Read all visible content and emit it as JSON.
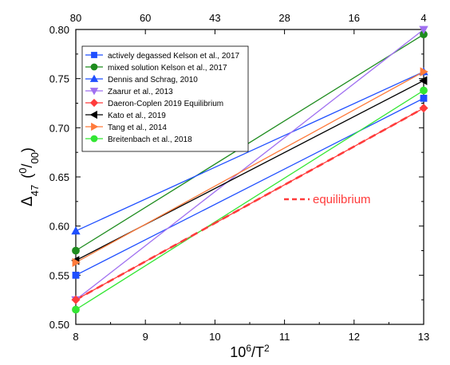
{
  "chart_data": {
    "type": "line",
    "xlabel_main": "10",
    "xlabel_sup": "6",
    "xlabel_rest": "/T",
    "xlabel_sup2": "2",
    "ylabel_delta": "Δ",
    "ylabel_sub": "47",
    "ylabel_unit_sup": "0",
    "ylabel_unit_slash": "/",
    "ylabel_unit_sub": "00",
    "xlim": [
      8,
      13
    ],
    "ylim": [
      0.5,
      0.8
    ],
    "x_ticks": [
      "8",
      "9",
      "10",
      "11",
      "12",
      "13"
    ],
    "x_tick_values": [
      8,
      9,
      10,
      11,
      12,
      13
    ],
    "y_ticks": [
      "0.50",
      "0.55",
      "0.60",
      "0.65",
      "0.70",
      "0.75",
      "0.80"
    ],
    "y_tick_values": [
      0.5,
      0.55,
      0.6,
      0.65,
      0.7,
      0.75,
      0.8
    ],
    "top_ticks": [
      "80",
      "60",
      "43",
      "28",
      "16",
      "4"
    ],
    "top_tick_values": [
      8,
      9,
      10,
      11,
      12,
      13
    ],
    "grid": false,
    "legend_position": "top-left",
    "series": [
      {
        "name": "actively degassed Kelson et al., 2017",
        "x": [
          8,
          13
        ],
        "y": [
          0.55,
          0.73
        ],
        "color": "#1f4fff",
        "marker": "square",
        "dashed": false
      },
      {
        "name": "mixed solution Kelson et al., 2017",
        "x": [
          8,
          13
        ],
        "y": [
          0.575,
          0.795
        ],
        "color": "#1e8c1e",
        "marker": "circle",
        "dashed": false
      },
      {
        "name": "Dennis and Schrag, 2010",
        "x": [
          8,
          13
        ],
        "y": [
          0.595,
          0.757
        ],
        "color": "#1f4fff",
        "marker": "triangle-up",
        "dashed": false
      },
      {
        "name": "Zaarur et al., 2013",
        "x": [
          8,
          13
        ],
        "y": [
          0.525,
          0.8
        ],
        "color": "#a070f0",
        "marker": "triangle-down",
        "dashed": false
      },
      {
        "name": "Daeron-Coplen 2019 Equilibrium",
        "x": [
          8,
          13
        ],
        "y": [
          0.525,
          0.72
        ],
        "color": "#ff3b3b",
        "marker": "diamond",
        "dashed": false
      },
      {
        "name": "Kato et al., 2019",
        "x": [
          8,
          13
        ],
        "y": [
          0.565,
          0.748
        ],
        "color": "#000000",
        "marker": "triangle-left",
        "dashed": false
      },
      {
        "name": "Tang et al., 2014",
        "x": [
          8,
          13
        ],
        "y": [
          0.563,
          0.757
        ],
        "color": "#ff7a3b",
        "marker": "triangle-right",
        "dashed": false
      },
      {
        "name": "Breitenbach et al., 2018",
        "x": [
          8,
          13
        ],
        "y": [
          0.515,
          0.738
        ],
        "color": "#33e633",
        "marker": "circle",
        "dashed": false
      },
      {
        "name": "",
        "x": [
          8,
          13
        ],
        "y": [
          0.525,
          0.72
        ],
        "color": "#ff3b3b",
        "marker": "none",
        "dashed": true
      }
    ],
    "annotation": {
      "text": "equilibrium",
      "color": "#ff3b3b"
    }
  }
}
